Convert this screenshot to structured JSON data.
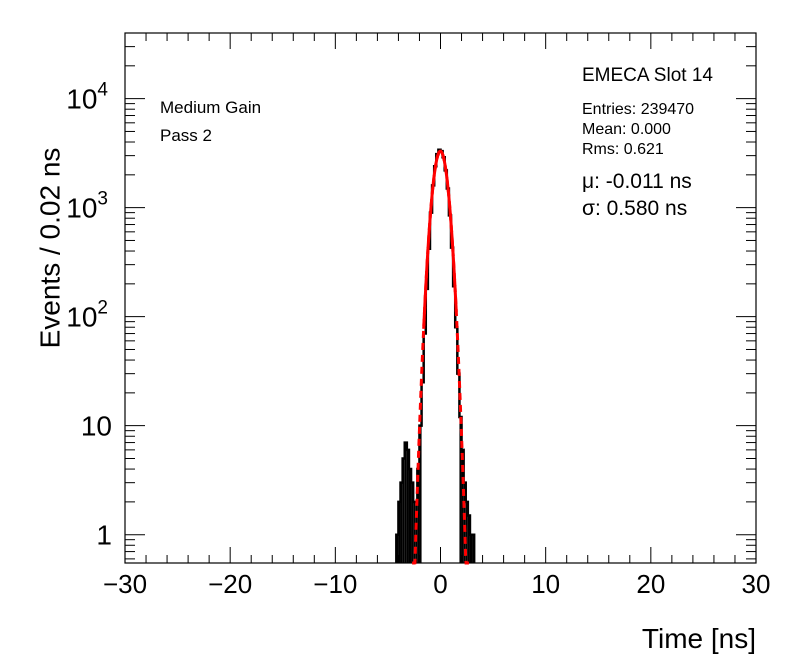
{
  "chart_data": {
    "type": "histogram",
    "xlabel": "Time [ns]",
    "ylabel": "Events / 0.02 ns",
    "xlim": [
      -30,
      30
    ],
    "ylim": [
      0.55,
      40000
    ],
    "yscale": "log",
    "x_ticks": [
      {
        "value": -30,
        "label": "−30"
      },
      {
        "value": -20,
        "label": "−20"
      },
      {
        "value": -10,
        "label": "−10"
      },
      {
        "value": 0,
        "label": "0"
      },
      {
        "value": 10,
        "label": "10"
      },
      {
        "value": 20,
        "label": "20"
      },
      {
        "value": 30,
        "label": "30"
      }
    ],
    "y_ticks": [
      {
        "value": 1,
        "base": "1",
        "exp": ""
      },
      {
        "value": 10,
        "base": "10",
        "exp": ""
      },
      {
        "value": 100,
        "base": "10",
        "exp": "2"
      },
      {
        "value": 1000,
        "base": "10",
        "exp": "3"
      },
      {
        "value": 10000,
        "base": "10",
        "exp": "4"
      }
    ],
    "annotations_left": [
      "Medium Gain",
      "Pass 2"
    ],
    "stats": {
      "title": "EMECA Slot 14",
      "entries": "Entries: 239470",
      "mean": "Mean: 0.000",
      "rms": "Rms: 0.621",
      "mu": "μ: -0.011 ns",
      "sigma": "σ: 0.580 ns"
    },
    "series": [
      {
        "kind": "histogram",
        "color": "#000000",
        "x": [
          -4.1,
          -3.9,
          -3.7,
          -3.5,
          -3.3,
          -3.1,
          -2.9,
          -2.7,
          -2.5,
          -2.3,
          -2.1,
          -1.9,
          -1.7,
          -1.5,
          -1.3,
          -1.1,
          -0.9,
          -0.7,
          -0.5,
          -0.3,
          -0.1,
          0.1,
          0.3,
          0.5,
          0.7,
          0.9,
          1.1,
          1.3,
          1.5,
          1.7,
          1.9,
          2.1,
          2.3,
          2.5,
          2.7,
          2.9,
          3.1
        ],
        "y": [
          1,
          2,
          3,
          5,
          7,
          6,
          4,
          3,
          2,
          2,
          4,
          10,
          25,
          70,
          180,
          420,
          900,
          1600,
          2400,
          3100,
          3400,
          3300,
          2900,
          2200,
          1500,
          850,
          430,
          190,
          80,
          30,
          12,
          6,
          3,
          2,
          1.5,
          1,
          1
        ]
      },
      {
        "kind": "gaussian-fit",
        "color": "#ff0000",
        "mu": -0.011,
        "sigma": 0.58,
        "amplitude": 3300,
        "solid_range": [
          -1.6,
          1.5
        ],
        "dashed_range": [
          -2.7,
          2.7
        ]
      }
    ]
  }
}
